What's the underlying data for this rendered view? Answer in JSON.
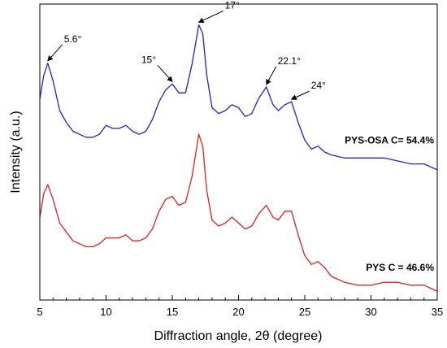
{
  "chart_data": {
    "type": "line",
    "title": "",
    "xlabel": "Diffraction angle, 2θ (degree)",
    "ylabel": "Intensity (a.u.)",
    "xlim": [
      5,
      35
    ],
    "ylim": [
      0,
      1
    ],
    "x_ticks": [
      5,
      10,
      15,
      20,
      25,
      30,
      35
    ],
    "x_tick_labels": [
      "5",
      "10",
      "15",
      "20",
      "25",
      "30",
      "35"
    ],
    "grid": false,
    "legend": "none",
    "colors": {
      "PYS-OSA": "#2222cc",
      "PYS": "#e02020",
      "axis": "#000000",
      "annotation": "#000000"
    },
    "annotations": [
      {
        "text": "5.6°",
        "x": 5.6,
        "series": "PYS-OSA"
      },
      {
        "text": "15°",
        "x": 15.0,
        "series": "PYS-OSA"
      },
      {
        "text": "17°",
        "x": 17.0,
        "series": "PYS-OSA"
      },
      {
        "text": "22.1°",
        "x": 22.1,
        "series": "PYS-OSA"
      },
      {
        "text": "24°",
        "x": 24.0,
        "series": "PYS-OSA"
      }
    ],
    "series": [
      {
        "label": "PYS-OSA  C= 54.4%",
        "color": "#2222cc",
        "x": [
          5.0,
          5.3,
          5.6,
          6.0,
          6.5,
          7.0,
          7.5,
          8.0,
          8.5,
          9.0,
          9.5,
          10.0,
          10.5,
          11.0,
          11.5,
          12.0,
          12.5,
          13.0,
          13.5,
          14.0,
          14.5,
          15.0,
          15.5,
          16.0,
          16.5,
          17.0,
          17.3,
          17.6,
          18.0,
          18.5,
          19.0,
          19.5,
          20.0,
          20.5,
          21.0,
          21.5,
          22.1,
          22.6,
          23.0,
          23.5,
          24.0,
          24.5,
          25.0,
          25.5,
          26.0,
          26.5,
          27.0,
          28.0,
          29.0,
          30.0,
          31.0,
          32.0,
          33.0,
          34.0,
          35.0
        ],
        "values": [
          0.68,
          0.76,
          0.8,
          0.74,
          0.64,
          0.6,
          0.57,
          0.56,
          0.55,
          0.55,
          0.56,
          0.59,
          0.58,
          0.58,
          0.59,
          0.57,
          0.56,
          0.57,
          0.61,
          0.67,
          0.71,
          0.73,
          0.7,
          0.7,
          0.8,
          0.93,
          0.9,
          0.76,
          0.65,
          0.63,
          0.64,
          0.66,
          0.65,
          0.62,
          0.63,
          0.68,
          0.72,
          0.66,
          0.64,
          0.66,
          0.67,
          0.6,
          0.54,
          0.51,
          0.52,
          0.5,
          0.49,
          0.48,
          0.48,
          0.48,
          0.48,
          0.47,
          0.46,
          0.46,
          0.44
        ]
      },
      {
        "label": "PYS  C = 46.6%",
        "color": "#e02020",
        "x": [
          5.0,
          5.3,
          5.6,
          6.0,
          6.5,
          7.0,
          7.5,
          8.0,
          8.5,
          9.0,
          9.5,
          10.0,
          10.5,
          11.0,
          11.5,
          12.0,
          12.5,
          13.0,
          13.5,
          14.0,
          14.5,
          15.0,
          15.5,
          16.0,
          16.5,
          17.0,
          17.3,
          17.6,
          18.0,
          18.5,
          19.0,
          19.5,
          20.0,
          20.5,
          21.0,
          21.5,
          22.1,
          22.6,
          23.0,
          23.5,
          24.0,
          24.5,
          25.0,
          25.5,
          26.0,
          26.5,
          27.0,
          28.0,
          29.0,
          30.0,
          31.0,
          32.0,
          33.0,
          34.0,
          35.0
        ],
        "values": [
          0.28,
          0.36,
          0.39,
          0.34,
          0.26,
          0.23,
          0.2,
          0.19,
          0.18,
          0.18,
          0.19,
          0.21,
          0.21,
          0.21,
          0.22,
          0.2,
          0.2,
          0.21,
          0.24,
          0.3,
          0.34,
          0.35,
          0.32,
          0.33,
          0.42,
          0.56,
          0.52,
          0.37,
          0.27,
          0.25,
          0.26,
          0.28,
          0.26,
          0.24,
          0.25,
          0.29,
          0.32,
          0.28,
          0.27,
          0.3,
          0.3,
          0.22,
          0.15,
          0.12,
          0.13,
          0.11,
          0.08,
          0.06,
          0.05,
          0.05,
          0.06,
          0.06,
          0.05,
          0.05,
          0.03
        ]
      }
    ]
  }
}
